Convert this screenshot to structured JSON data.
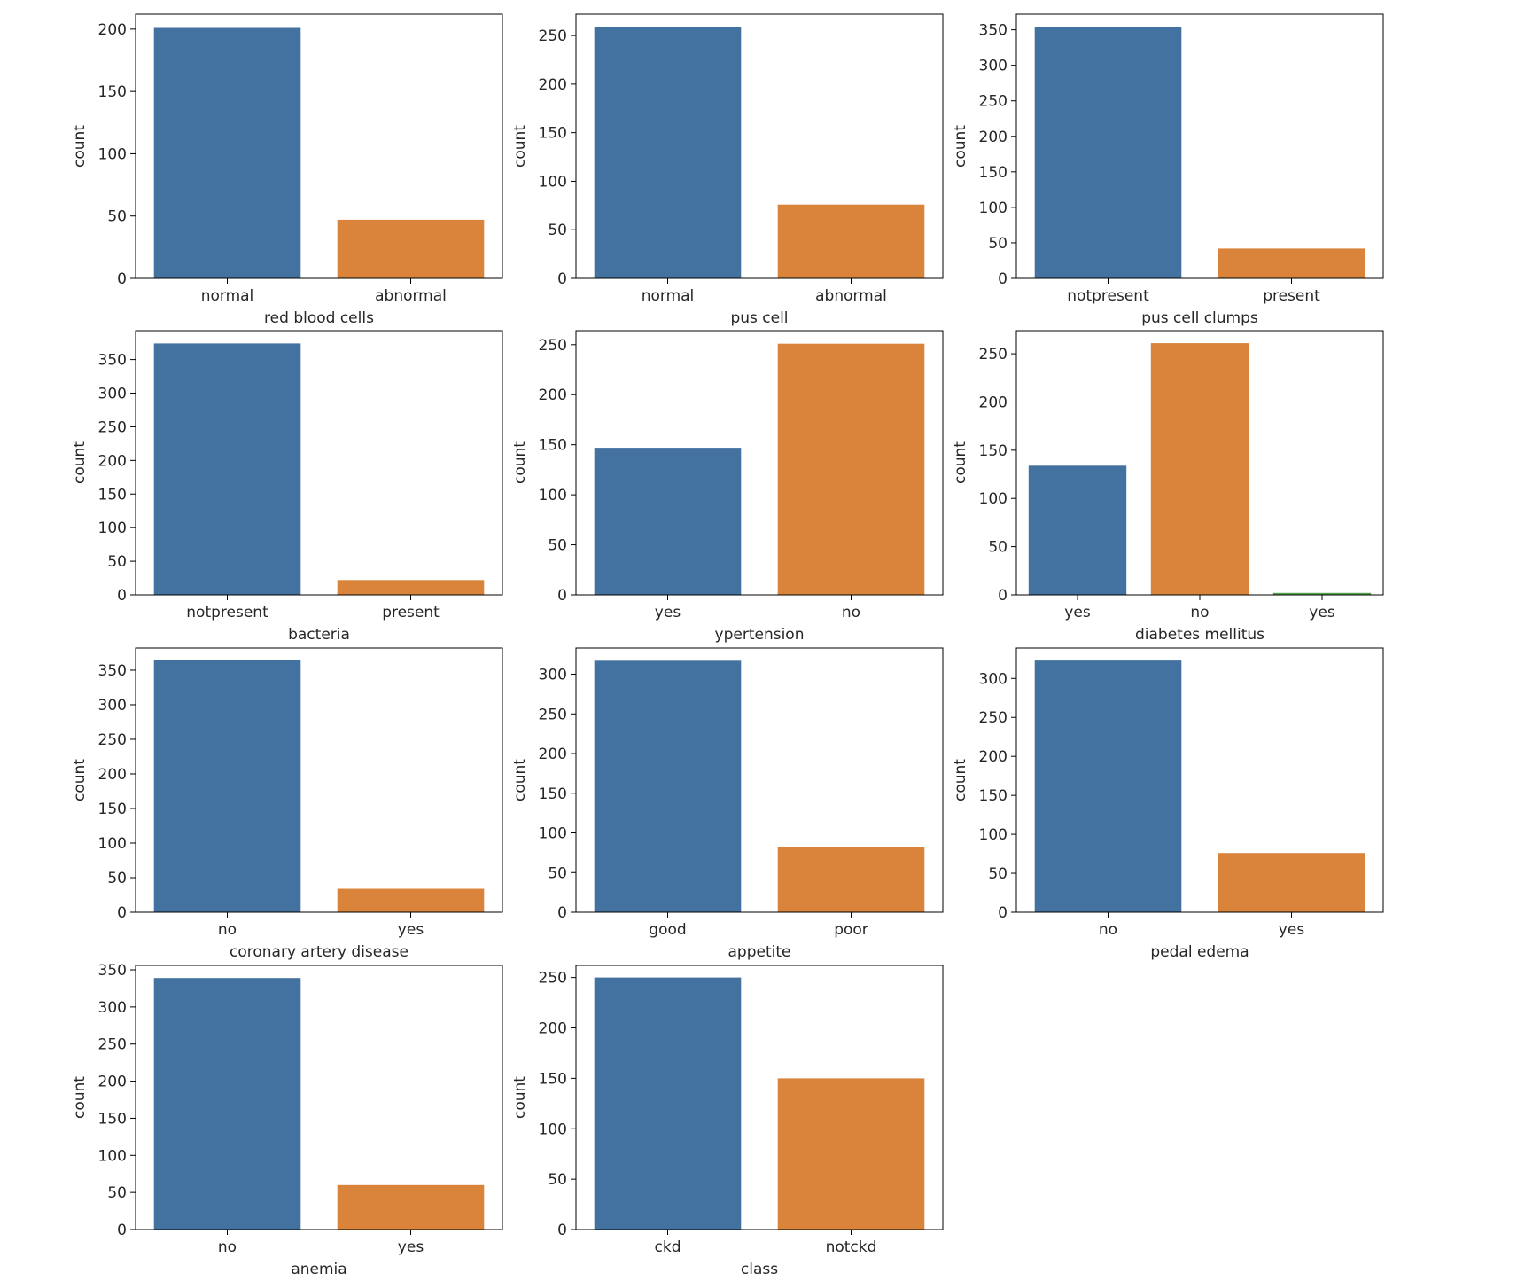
{
  "colors": [
    "#4472a0",
    "#d9843a",
    "#54a24b"
  ],
  "chart_data": [
    {
      "type": "bar",
      "xlabel": "red blood cells",
      "ylabel": "count",
      "categories": [
        "normal",
        "abnormal"
      ],
      "values": [
        201,
        47
      ],
      "ylim": [
        0,
        212
      ],
      "yticks": [
        0,
        50,
        100,
        150,
        200
      ]
    },
    {
      "type": "bar",
      "xlabel": "pus cell",
      "ylabel": "count",
      "categories": [
        "normal",
        "abnormal"
      ],
      "values": [
        259,
        76
      ],
      "ylim": [
        0,
        272
      ],
      "yticks": [
        0,
        50,
        100,
        150,
        200,
        250
      ]
    },
    {
      "type": "bar",
      "xlabel": "pus cell clumps",
      "ylabel": "count",
      "categories": [
        "notpresent",
        "present"
      ],
      "values": [
        354,
        42
      ],
      "ylim": [
        0,
        372
      ],
      "yticks": [
        0,
        50,
        100,
        150,
        200,
        250,
        300,
        350
      ]
    },
    {
      "type": "bar",
      "xlabel": "bacteria",
      "ylabel": "count",
      "categories": [
        "notpresent",
        "present"
      ],
      "values": [
        374,
        22
      ],
      "ylim": [
        0,
        393
      ],
      "yticks": [
        0,
        50,
        100,
        150,
        200,
        250,
        300,
        350
      ]
    },
    {
      "type": "bar",
      "xlabel": "ypertension",
      "ylabel": "count",
      "categories": [
        "yes",
        "no"
      ],
      "values": [
        147,
        251
      ],
      "ylim": [
        0,
        264
      ],
      "yticks": [
        0,
        50,
        100,
        150,
        200,
        250
      ]
    },
    {
      "type": "bar",
      "xlabel": "diabetes mellitus",
      "ylabel": "count",
      "categories": [
        "yes",
        "no",
        "yes"
      ],
      "values": [
        134,
        261,
        2
      ],
      "ylim": [
        0,
        274
      ],
      "yticks": [
        0,
        50,
        100,
        150,
        200,
        250
      ]
    },
    {
      "type": "bar",
      "xlabel": "coronary artery disease",
      "ylabel": "count",
      "categories": [
        "no",
        "yes"
      ],
      "values": [
        364,
        34
      ],
      "ylim": [
        0,
        382
      ],
      "yticks": [
        0,
        50,
        100,
        150,
        200,
        250,
        300,
        350
      ]
    },
    {
      "type": "bar",
      "xlabel": "appetite",
      "ylabel": "count",
      "categories": [
        "good",
        "poor"
      ],
      "values": [
        317,
        82
      ],
      "ylim": [
        0,
        333
      ],
      "yticks": [
        0,
        50,
        100,
        150,
        200,
        250,
        300
      ]
    },
    {
      "type": "bar",
      "xlabel": "pedal edema",
      "ylabel": "count",
      "categories": [
        "no",
        "yes"
      ],
      "values": [
        323,
        76
      ],
      "ylim": [
        0,
        339
      ],
      "yticks": [
        0,
        50,
        100,
        150,
        200,
        250,
        300
      ]
    },
    {
      "type": "bar",
      "xlabel": "anemia",
      "ylabel": "count",
      "categories": [
        "no",
        "yes"
      ],
      "values": [
        339,
        60
      ],
      "ylim": [
        0,
        356
      ],
      "yticks": [
        0,
        50,
        100,
        150,
        200,
        250,
        300,
        350
      ]
    },
    {
      "type": "bar",
      "xlabel": "class",
      "ylabel": "count",
      "categories": [
        "ckd",
        "notckd"
      ],
      "values": [
        250,
        150
      ],
      "ylim": [
        0,
        262
      ],
      "yticks": [
        0,
        50,
        100,
        150,
        200,
        250
      ]
    }
  ]
}
